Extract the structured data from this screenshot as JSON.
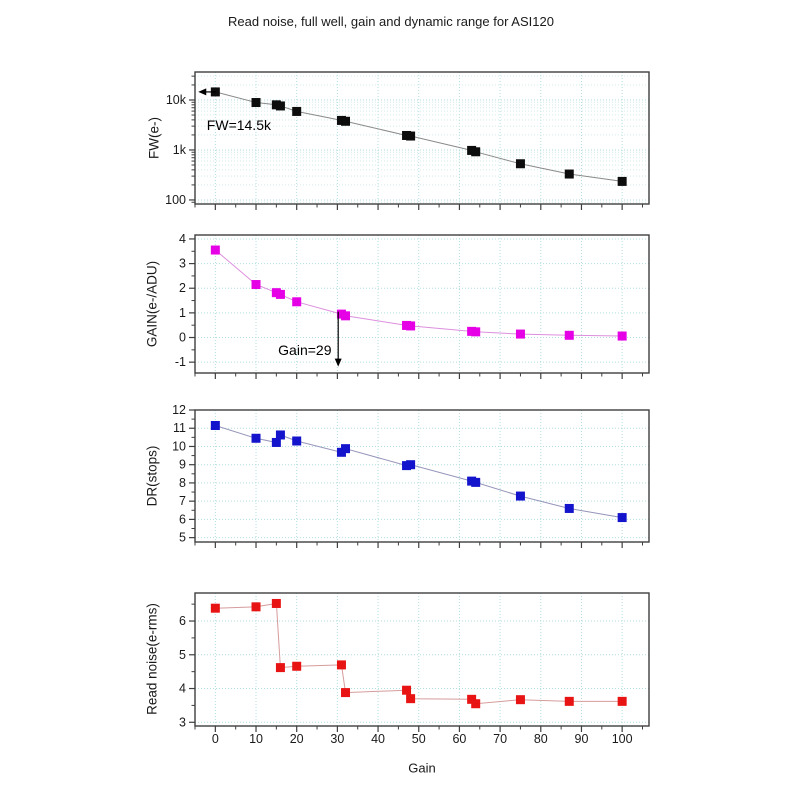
{
  "title": "Read noise, full well, gain and dynamic range for ASI120",
  "chart_data": {
    "type": "line",
    "title": "Read noise, full well, gain and dynamic range for ASI120",
    "xlabel": "Gain",
    "x": [
      0,
      10,
      15,
      16,
      20,
      31,
      32,
      47,
      48,
      63,
      64,
      75,
      87,
      100
    ],
    "xlim": [
      -5,
      106.6
    ],
    "x_major_ticks": [
      {
        "value": 0,
        "label": "0"
      },
      {
        "value": 10,
        "label": "10"
      },
      {
        "value": 20,
        "label": "20"
      },
      {
        "value": 30,
        "label": "30"
      },
      {
        "value": 40,
        "label": "40"
      },
      {
        "value": 50,
        "label": "50"
      },
      {
        "value": 60,
        "label": "60"
      },
      {
        "value": 70,
        "label": "70"
      },
      {
        "value": 80,
        "label": "80"
      },
      {
        "value": 90,
        "label": "90"
      },
      {
        "value": 100,
        "label": "100"
      }
    ],
    "x_minor_ticks": [
      -5,
      5,
      15,
      25,
      35,
      45,
      55,
      65,
      75,
      85,
      95,
      105
    ],
    "grid": true,
    "legend": "none",
    "colors": {
      "grid_major": "#b2dede",
      "grid_minor": "#d2ecec",
      "frame": "#3f3f3f",
      "tick": "#3f3f3f",
      "text": "#1a1a1a",
      "annotation_arrow": "#000000"
    },
    "panels": [
      {
        "name": "full-well",
        "ylabel": "FW(e-)",
        "yscale": "log",
        "ylim": [
          83,
          36300
        ],
        "y_major_ticks": [
          {
            "value": 100,
            "label": "100"
          },
          {
            "value": 1000,
            "label": "1k"
          },
          {
            "value": 10000,
            "label": "10k"
          }
        ],
        "values": [
          14500,
          8900,
          8000,
          7600,
          5900,
          3900,
          3750,
          1950,
          1900,
          980,
          920,
          530,
          330,
          235
        ],
        "marker_color": "#0d0d0d",
        "line_color": "#8a8a8a",
        "annotation": {
          "text": "FW=14.5k",
          "text_gain": -2.1,
          "text_value": 3100,
          "arrow": {
            "orient": "horizontal",
            "value": 14500,
            "from_gain": 0.2,
            "to_gain": -4.2
          }
        }
      },
      {
        "name": "gain",
        "ylabel": "GAIN(e-/ADU)",
        "yscale": "linear",
        "ylim": [
          -1.44,
          4.16
        ],
        "y_major_ticks": [
          {
            "value": -1,
            "label": "-1"
          },
          {
            "value": 0,
            "label": "0"
          },
          {
            "value": 1,
            "label": "1"
          },
          {
            "value": 2,
            "label": "2"
          },
          {
            "value": 3,
            "label": "3"
          },
          {
            "value": 4,
            "label": "4"
          }
        ],
        "y_minor_step": 0.5,
        "values": [
          3.55,
          2.15,
          1.82,
          1.75,
          1.45,
          0.95,
          0.88,
          0.49,
          0.47,
          0.25,
          0.23,
          0.14,
          0.09,
          0.06
        ],
        "marker_color": "#e600e6",
        "line_color": "#dd8fdd",
        "annotation": {
          "text": "Gain=29",
          "text_gain": 22,
          "text_value": -0.52,
          "arrow": {
            "orient": "vertical",
            "gain": 30.2,
            "from_value": 1.05,
            "to_value": -1.18
          }
        }
      },
      {
        "name": "dynamic-range",
        "ylabel": "DR(stops)",
        "yscale": "linear",
        "ylim": [
          4.76,
          12
        ],
        "y_major_ticks": [
          {
            "value": 5,
            "label": "5"
          },
          {
            "value": 6,
            "label": "6"
          },
          {
            "value": 7,
            "label": "7"
          },
          {
            "value": 8,
            "label": "8"
          },
          {
            "value": 9,
            "label": "9"
          },
          {
            "value": 10,
            "label": "10"
          },
          {
            "value": 11,
            "label": "11"
          },
          {
            "value": 12,
            "label": "12"
          }
        ],
        "y_minor_step": 0.5,
        "values": [
          11.15,
          10.45,
          10.22,
          10.63,
          10.3,
          9.68,
          9.88,
          8.95,
          9.0,
          8.1,
          8.03,
          7.28,
          6.6,
          6.1
        ],
        "marker_color": "#1414cc",
        "line_color": "#9595bb",
        "annotation": null
      },
      {
        "name": "read-noise",
        "ylabel": "Read noise(e-rms)",
        "yscale": "linear",
        "ylim": [
          2.89,
          6.83
        ],
        "y_major_ticks": [
          {
            "value": 3,
            "label": "3"
          },
          {
            "value": 4,
            "label": "4"
          },
          {
            "value": 5,
            "label": "5"
          },
          {
            "value": 6,
            "label": "6"
          }
        ],
        "y_minor_step": 0.5,
        "values": [
          6.38,
          6.42,
          6.52,
          4.62,
          4.66,
          4.7,
          3.88,
          3.95,
          3.7,
          3.68,
          3.55,
          3.67,
          3.62,
          3.62
        ],
        "marker_color": "#e81414",
        "line_color": "#d69c9c",
        "annotation": null
      }
    ]
  }
}
